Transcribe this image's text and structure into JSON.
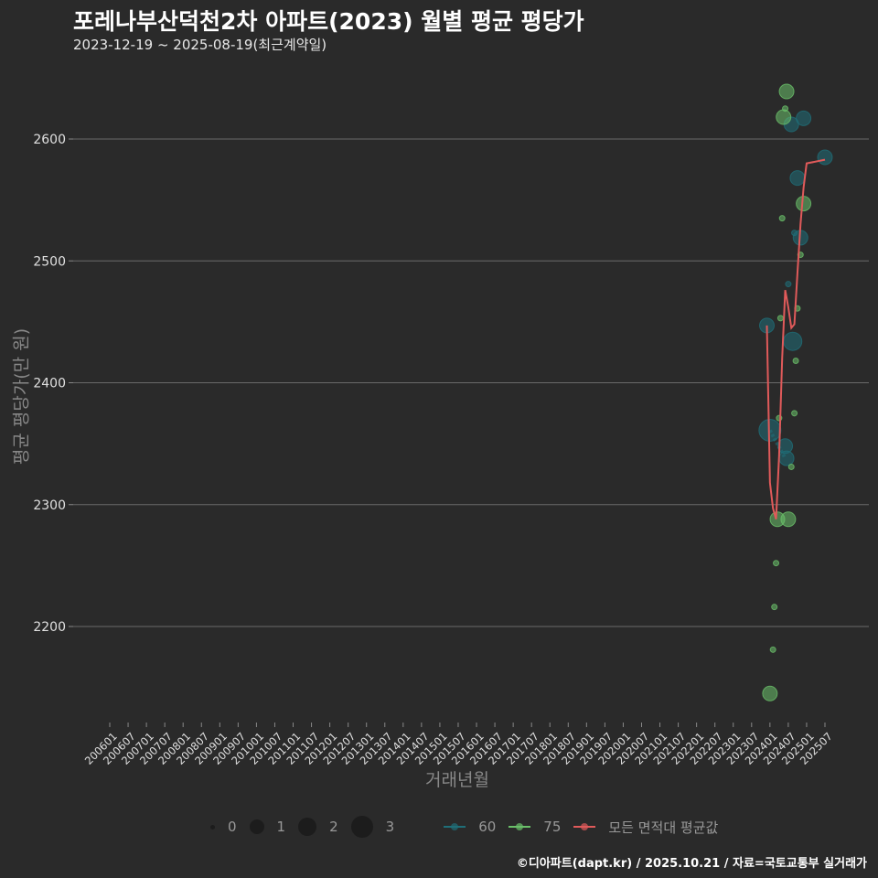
{
  "header": {
    "title": "포레나부산덕천2차 아파트(2023) 월별 평균 평당가",
    "subtitle": "2023-12-19 ~ 2025-08-19(최근계약일)"
  },
  "axes": {
    "ylabel": "평균 평당가(만 원)",
    "xlabel": "거래년월"
  },
  "legend": {
    "size_items": [
      {
        "label": "0",
        "size": 5
      },
      {
        "label": "1",
        "size": 16
      },
      {
        "label": "2",
        "size": 20
      },
      {
        "label": "3",
        "size": 24
      }
    ],
    "line_items": [
      {
        "label": "60",
        "color": "#1f6e78"
      },
      {
        "label": "75",
        "color": "#6abf69"
      },
      {
        "label": "모든 면적대 평균값",
        "color": "#e05a5a"
      }
    ]
  },
  "footer": "©디아파트(dapt.kr) / 2025.10.21 / 자료=국토교통부 실거래가",
  "chart_data": {
    "type": "scatter",
    "title": "포레나부산덕천2차 아파트(2023) 월별 평균 평당가",
    "subtitle": "2023-12-19 ~ 2025-08-19(최근계약일)",
    "xlabel": "거래년월",
    "ylabel": "평균 평당가(만 원)",
    "ylim": [
      2120,
      2660
    ],
    "yticks": [
      2200,
      2300,
      2400,
      2500,
      2600
    ],
    "xticks": [
      "200601",
      "200607",
      "200701",
      "200707",
      "200801",
      "200807",
      "200901",
      "200907",
      "201001",
      "201007",
      "201101",
      "201107",
      "201201",
      "201207",
      "201301",
      "201307",
      "201401",
      "201407",
      "201501",
      "201507",
      "201601",
      "201607",
      "201701",
      "201707",
      "201801",
      "201807",
      "201901",
      "201907",
      "202001",
      "202007",
      "202101",
      "202107",
      "202201",
      "202207",
      "202301",
      "202307",
      "202401",
      "202407",
      "202501",
      "202507"
    ],
    "grid": true,
    "legend_position": "bottom",
    "series": [
      {
        "name": "60",
        "color": "#1f6e78",
        "points": [
          {
            "x": "202312",
            "y": 2447,
            "r": 8
          },
          {
            "x": "202401",
            "y": 2361,
            "r": 12
          },
          {
            "x": "202406",
            "y": 2348,
            "r": 8
          },
          {
            "x": "202406",
            "y": 2338,
            "r": 8
          },
          {
            "x": "202407",
            "y": 2481,
            "r": 3
          },
          {
            "x": "202408",
            "y": 2612,
            "r": 8
          },
          {
            "x": "202408",
            "y": 2434,
            "r": 10
          },
          {
            "x": "202409",
            "y": 2523,
            "r": 3
          },
          {
            "x": "202410",
            "y": 2568,
            "r": 8
          },
          {
            "x": "202411",
            "y": 2519,
            "r": 8
          },
          {
            "x": "202412",
            "y": 2617,
            "r": 8
          },
          {
            "x": "202507",
            "y": 2585,
            "r": 8
          }
        ]
      },
      {
        "name": "75",
        "color": "#6abf69",
        "points": [
          {
            "x": "202401",
            "y": 2145,
            "r": 8
          },
          {
            "x": "202402",
            "y": 2181,
            "r": 3
          },
          {
            "x": "202402",
            "y": 2216,
            "r": 3
          },
          {
            "x": "202403",
            "y": 2252,
            "r": 3
          },
          {
            "x": "202403",
            "y": 2288,
            "r": 8
          },
          {
            "x": "202404",
            "y": 2371,
            "r": 3
          },
          {
            "x": "202404",
            "y": 2453,
            "r": 3
          },
          {
            "x": "202405",
            "y": 2535,
            "r": 3
          },
          {
            "x": "202405",
            "y": 2618,
            "r": 8
          },
          {
            "x": "202406",
            "y": 2625,
            "r": 3
          },
          {
            "x": "202406",
            "y": 2639,
            "r": 8
          },
          {
            "x": "202407",
            "y": 2288,
            "r": 8
          },
          {
            "x": "202408",
            "y": 2331,
            "r": 3
          },
          {
            "x": "202409",
            "y": 2375,
            "r": 3
          },
          {
            "x": "202409",
            "y": 2418,
            "r": 3
          },
          {
            "x": "202410",
            "y": 2461,
            "r": 3
          },
          {
            "x": "202411",
            "y": 2505,
            "r": 3
          },
          {
            "x": "202412",
            "y": 2547,
            "r": 8
          }
        ]
      },
      {
        "name": "모든 면적대 평균값",
        "type": "line",
        "color": "#e05a5a",
        "x": [
          "202312",
          "202401",
          "202402",
          "202403",
          "202404",
          "202405",
          "202406",
          "202407",
          "202408",
          "202409",
          "202410",
          "202411",
          "202412",
          "202501",
          "202507"
        ],
        "values": [
          2447,
          2318,
          2297,
          2288,
          2340,
          2420,
          2476,
          2462,
          2445,
          2448,
          2490,
          2530,
          2560,
          2580,
          2583
        ]
      }
    ]
  }
}
